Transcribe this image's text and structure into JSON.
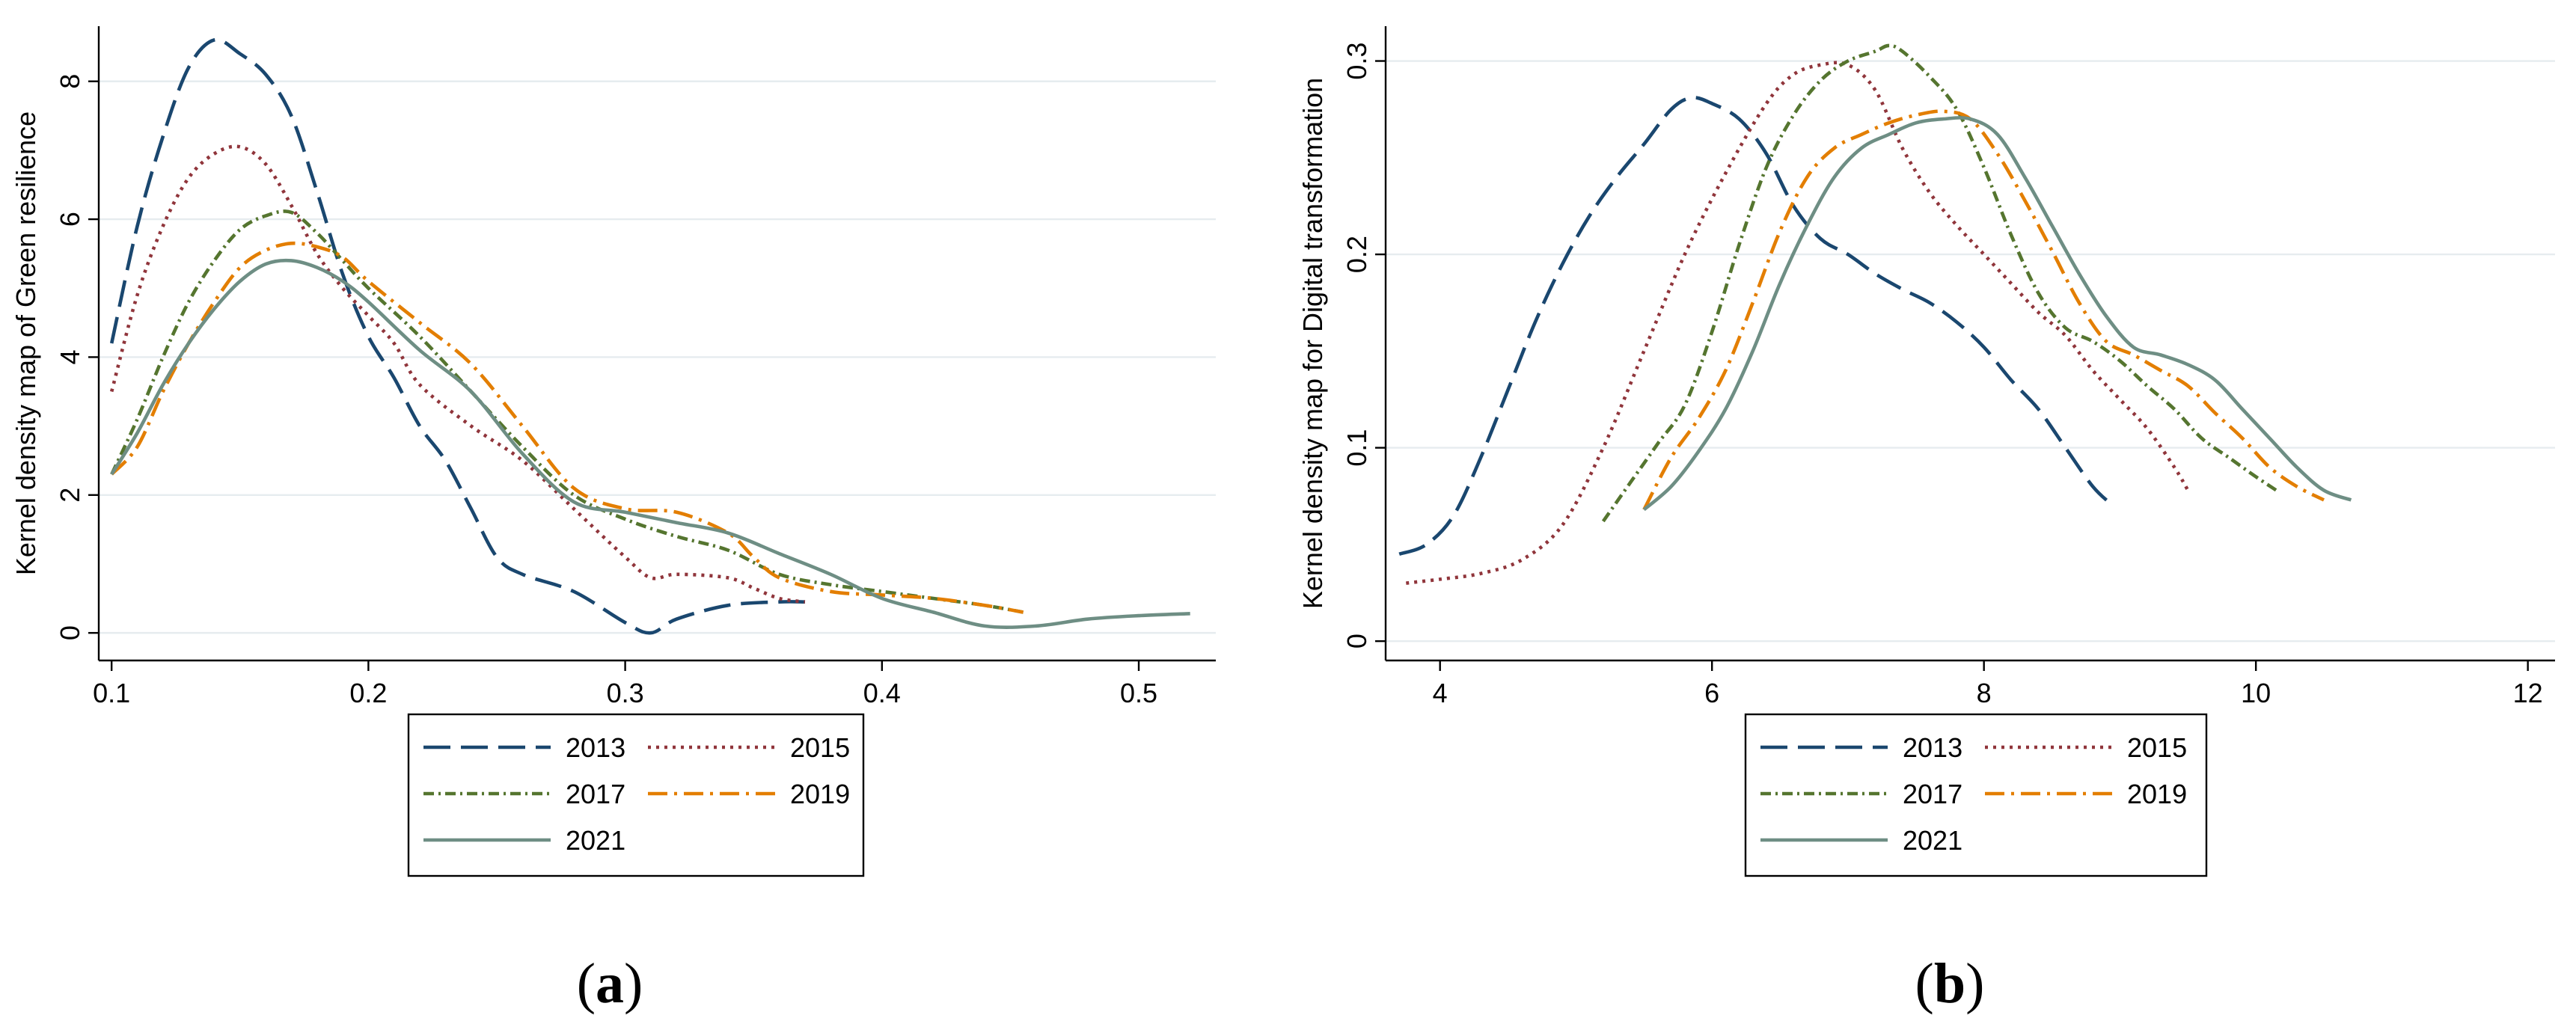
{
  "chart_data": [
    {
      "type": "line",
      "panel": "a",
      "title": "",
      "caption": "(a)",
      "caption_letter": "a",
      "xlabel": "",
      "ylabel": "Kernel density map of Green resilience",
      "xlim": [
        0.095,
        0.53
      ],
      "ylim": [
        -0.4,
        8.8
      ],
      "xticks": [
        0.1,
        0.2,
        0.3,
        0.4,
        0.5
      ],
      "xtick_labels": [
        "0.1",
        "0.2",
        "0.3",
        "0.4",
        "0.5"
      ],
      "yticks": [
        0,
        2,
        4,
        6,
        8
      ],
      "ytick_labels": [
        "0",
        "2",
        "4",
        "6",
        "8"
      ],
      "grid": true,
      "legend_position": "bottom",
      "series": [
        {
          "name": "2013",
          "x": [
            0.1,
            0.11,
            0.12,
            0.13,
            0.14,
            0.15,
            0.16,
            0.17,
            0.18,
            0.19,
            0.2,
            0.21,
            0.22,
            0.23,
            0.24,
            0.25,
            0.26,
            0.28,
            0.3,
            0.31,
            0.32,
            0.34,
            0.36,
            0.37
          ],
          "y": [
            4.2,
            5.9,
            7.2,
            8.2,
            8.6,
            8.4,
            8.1,
            7.5,
            6.4,
            5.2,
            4.3,
            3.7,
            3.0,
            2.5,
            1.8,
            1.1,
            0.85,
            0.6,
            0.15,
            0.0,
            0.2,
            0.4,
            0.45,
            0.45
          ]
        },
        {
          "name": "2015",
          "x": [
            0.1,
            0.11,
            0.12,
            0.13,
            0.14,
            0.15,
            0.16,
            0.17,
            0.18,
            0.19,
            0.2,
            0.21,
            0.22,
            0.24,
            0.26,
            0.28,
            0.3,
            0.31,
            0.32,
            0.34,
            0.35,
            0.36,
            0.37
          ],
          "y": [
            3.5,
            4.9,
            5.9,
            6.6,
            6.95,
            7.05,
            6.8,
            6.2,
            5.5,
            5.0,
            4.6,
            4.2,
            3.6,
            3.0,
            2.5,
            1.8,
            1.1,
            0.8,
            0.85,
            0.8,
            0.65,
            0.5,
            0.45
          ]
        },
        {
          "name": "2017",
          "x": [
            0.1,
            0.11,
            0.12,
            0.13,
            0.14,
            0.15,
            0.16,
            0.17,
            0.18,
            0.19,
            0.2,
            0.22,
            0.24,
            0.26,
            0.28,
            0.3,
            0.32,
            0.34,
            0.36,
            0.38,
            0.4,
            0.42,
            0.44,
            0.455
          ],
          "y": [
            2.3,
            3.1,
            4.0,
            4.8,
            5.4,
            5.85,
            6.05,
            6.1,
            5.8,
            5.4,
            5.0,
            4.3,
            3.5,
            2.7,
            2.0,
            1.65,
            1.4,
            1.2,
            0.85,
            0.7,
            0.6,
            0.5,
            0.4,
            0.3
          ]
        },
        {
          "name": "2019",
          "x": [
            0.1,
            0.11,
            0.12,
            0.13,
            0.14,
            0.15,
            0.16,
            0.17,
            0.18,
            0.19,
            0.2,
            0.22,
            0.24,
            0.26,
            0.28,
            0.3,
            0.32,
            0.34,
            0.35,
            0.36,
            0.38,
            0.4,
            0.42,
            0.44,
            0.455
          ],
          "y": [
            2.3,
            2.7,
            3.5,
            4.2,
            4.8,
            5.3,
            5.55,
            5.65,
            5.6,
            5.45,
            5.1,
            4.5,
            3.9,
            3.0,
            2.1,
            1.8,
            1.75,
            1.45,
            1.1,
            0.8,
            0.6,
            0.55,
            0.5,
            0.4,
            0.3
          ]
        },
        {
          "name": "2021",
          "x": [
            0.1,
            0.11,
            0.12,
            0.13,
            0.14,
            0.15,
            0.16,
            0.17,
            0.18,
            0.19,
            0.2,
            0.22,
            0.24,
            0.26,
            0.28,
            0.3,
            0.32,
            0.34,
            0.36,
            0.38,
            0.4,
            0.42,
            0.44,
            0.46,
            0.48,
            0.5,
            0.52
          ],
          "y": [
            2.3,
            2.9,
            3.6,
            4.2,
            4.7,
            5.1,
            5.35,
            5.4,
            5.3,
            5.1,
            4.8,
            4.1,
            3.5,
            2.6,
            1.9,
            1.75,
            1.6,
            1.45,
            1.15,
            0.85,
            0.5,
            0.3,
            0.1,
            0.1,
            0.2,
            0.25,
            0.28
          ]
        }
      ],
      "legend_labels": [
        "2013",
        "2015",
        "2017",
        "2019",
        "2021"
      ]
    },
    {
      "type": "line",
      "panel": "b",
      "title": "",
      "caption": "(b)",
      "caption_letter": "b",
      "xlabel": "",
      "ylabel": "Kernel density map for Digital transformation",
      "xlim": [
        3.6,
        12.2
      ],
      "ylim": [
        -0.01,
        0.318
      ],
      "xticks": [
        4,
        6,
        8,
        10,
        12
      ],
      "xtick_labels": [
        "4",
        "6",
        "8",
        "10",
        "12"
      ],
      "yticks": [
        0,
        0.1,
        0.2,
        0.3
      ],
      "ytick_labels": [
        "0",
        "0.1",
        "0.2",
        "0.3"
      ],
      "grid": true,
      "legend_position": "bottom",
      "series": [
        {
          "name": "2013",
          "x": [
            3.7,
            3.9,
            4.1,
            4.3,
            4.5,
            4.7,
            4.9,
            5.1,
            5.3,
            5.5,
            5.7,
            5.85,
            6.0,
            6.2,
            6.4,
            6.6,
            6.8,
            7.0,
            7.2,
            7.4,
            7.6,
            7.8,
            8.0,
            8.2,
            8.4,
            8.6,
            8.8,
            8.95
          ],
          "y": [
            0.045,
            0.05,
            0.065,
            0.095,
            0.13,
            0.165,
            0.195,
            0.22,
            0.24,
            0.257,
            0.275,
            0.281,
            0.278,
            0.27,
            0.252,
            0.225,
            0.208,
            0.2,
            0.19,
            0.182,
            0.175,
            0.165,
            0.152,
            0.135,
            0.12,
            0.1,
            0.08,
            0.07
          ]
        },
        {
          "name": "2015",
          "x": [
            3.75,
            4.0,
            4.3,
            4.6,
            4.9,
            5.2,
            5.5,
            5.8,
            6.1,
            6.4,
            6.6,
            6.8,
            7.0,
            7.2,
            7.4,
            7.6,
            7.8,
            8.0,
            8.2,
            8.4,
            8.6,
            8.8,
            9.0,
            9.2,
            9.4,
            9.5
          ],
          "y": [
            0.03,
            0.032,
            0.035,
            0.042,
            0.06,
            0.1,
            0.15,
            0.2,
            0.242,
            0.278,
            0.293,
            0.298,
            0.298,
            0.285,
            0.255,
            0.232,
            0.215,
            0.2,
            0.185,
            0.17,
            0.158,
            0.14,
            0.125,
            0.11,
            0.09,
            0.078
          ]
        },
        {
          "name": "2017",
          "x": [
            5.2,
            5.4,
            5.6,
            5.8,
            6.0,
            6.2,
            6.4,
            6.6,
            6.8,
            7.0,
            7.2,
            7.3,
            7.4,
            7.6,
            7.8,
            8.0,
            8.2,
            8.4,
            8.6,
            8.8,
            9.0,
            9.2,
            9.4,
            9.6,
            9.8,
            10.0,
            10.15
          ],
          "y": [
            0.062,
            0.082,
            0.102,
            0.122,
            0.16,
            0.205,
            0.245,
            0.272,
            0.29,
            0.3,
            0.305,
            0.308,
            0.305,
            0.292,
            0.275,
            0.245,
            0.21,
            0.18,
            0.162,
            0.155,
            0.145,
            0.132,
            0.12,
            0.105,
            0.095,
            0.085,
            0.078
          ]
        },
        {
          "name": "2019",
          "x": [
            5.5,
            5.7,
            5.9,
            6.1,
            6.3,
            6.5,
            6.7,
            6.9,
            7.1,
            7.3,
            7.5,
            7.7,
            7.9,
            8.1,
            8.3,
            8.5,
            8.7,
            8.9,
            9.1,
            9.3,
            9.5,
            9.7,
            9.9,
            10.1,
            10.3,
            10.5
          ],
          "y": [
            0.068,
            0.095,
            0.115,
            0.14,
            0.175,
            0.212,
            0.24,
            0.255,
            0.262,
            0.268,
            0.272,
            0.274,
            0.27,
            0.252,
            0.228,
            0.202,
            0.175,
            0.155,
            0.148,
            0.14,
            0.132,
            0.118,
            0.105,
            0.09,
            0.08,
            0.073
          ]
        },
        {
          "name": "2021",
          "x": [
            5.5,
            5.7,
            5.9,
            6.1,
            6.3,
            6.5,
            6.7,
            6.9,
            7.1,
            7.3,
            7.5,
            7.7,
            7.9,
            8.1,
            8.3,
            8.5,
            8.7,
            8.9,
            9.1,
            9.3,
            9.5,
            9.7,
            9.9,
            10.1,
            10.3,
            10.5,
            10.7
          ],
          "y": [
            0.068,
            0.08,
            0.098,
            0.12,
            0.15,
            0.185,
            0.215,
            0.24,
            0.255,
            0.262,
            0.268,
            0.27,
            0.27,
            0.262,
            0.24,
            0.215,
            0.19,
            0.168,
            0.152,
            0.148,
            0.143,
            0.135,
            0.12,
            0.105,
            0.09,
            0.078,
            0.073
          ]
        }
      ],
      "legend_labels": [
        "2013",
        "2015",
        "2017",
        "2019",
        "2021"
      ]
    }
  ],
  "styles": {
    "colors": {
      "2013": "#1a476f",
      "2015": "#90353b",
      "2017": "#55752f",
      "2019": "#e37e00",
      "2021": "#6e8e84"
    },
    "dashes": {
      "2013": "36,14",
      "2015": "4,7",
      "2017": "14,6,3,6",
      "2019": "26,9,4,9",
      "2021": ""
    },
    "grid_color": "#e6ecef"
  }
}
